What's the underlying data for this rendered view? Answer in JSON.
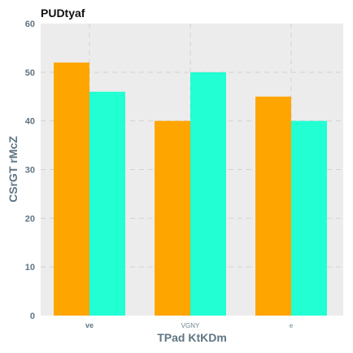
{
  "chart_data": {
    "type": "bar",
    "title": "PUDtyaf",
    "xlabel": "TPad KtKDm",
    "ylabel": "CSrGT rMcZ",
    "categories": [
      "ve",
      "VGNY",
      "e"
    ],
    "series": [
      {
        "values": [
          52,
          40,
          45
        ],
        "color": "#ffa500"
      },
      {
        "values": [
          46,
          50,
          40
        ],
        "color": "#22ffd2"
      }
    ],
    "ylim": [
      0,
      60
    ],
    "yticks": [
      0,
      10,
      20,
      30,
      40,
      50,
      60
    ],
    "grid": true,
    "plot_background": "#ececec"
  }
}
